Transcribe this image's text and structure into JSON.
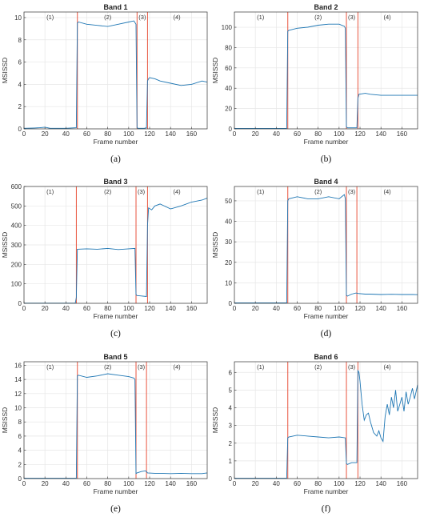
{
  "chart_data": [
    {
      "type": "line",
      "caption": "(a)",
      "title": "Band 1",
      "xlabel": "Frame number",
      "ylabel": "MSISSD",
      "xlim": [
        0,
        175
      ],
      "ylim": [
        0,
        10.5
      ],
      "xticks": [
        0,
        20,
        40,
        60,
        80,
        100,
        120,
        140,
        160
      ],
      "yticks": [
        0,
        2,
        4,
        6,
        8,
        10
      ],
      "grid": true,
      "vlines": [
        51,
        108,
        118
      ],
      "regions": [
        "(1)",
        "(2)",
        "(3)",
        "(4)"
      ],
      "region_x": [
        25,
        80,
        113,
        146
      ],
      "x": [
        0,
        10,
        15,
        20,
        25,
        30,
        40,
        50,
        51,
        52,
        60,
        70,
        80,
        90,
        100,
        105,
        107,
        108,
        109,
        112,
        115,
        117,
        118,
        119,
        120,
        125,
        130,
        140,
        150,
        160,
        170,
        175
      ],
      "y": [
        0.05,
        0.08,
        0.1,
        0.15,
        0.05,
        0.05,
        0.05,
        0.1,
        9.5,
        9.6,
        9.4,
        9.3,
        9.2,
        9.4,
        9.6,
        9.7,
        9.4,
        0.1,
        0.05,
        0.05,
        0.05,
        0.1,
        4.3,
        4.5,
        4.6,
        4.5,
        4.3,
        4.1,
        3.9,
        4.0,
        4.3,
        4.2
      ]
    },
    {
      "type": "line",
      "caption": "(b)",
      "title": "Band 2",
      "xlabel": "Frame number",
      "ylabel": "MSISSD",
      "xlim": [
        0,
        175
      ],
      "ylim": [
        0,
        115
      ],
      "xticks": [
        0,
        20,
        40,
        60,
        80,
        100,
        120,
        140,
        160
      ],
      "yticks": [
        0,
        20,
        40,
        60,
        80,
        100
      ],
      "grid": true,
      "vlines": [
        51,
        107,
        118
      ],
      "regions": [
        "(1)",
        "(2)",
        "(3)",
        "(4)"
      ],
      "region_x": [
        25,
        80,
        112,
        146
      ],
      "x": [
        0,
        20,
        40,
        50,
        51,
        52,
        60,
        70,
        80,
        90,
        100,
        105,
        106,
        107,
        108,
        112,
        117,
        118,
        119,
        125,
        130,
        140,
        150,
        160,
        170,
        175
      ],
      "y": [
        0.5,
        0.5,
        0.5,
        0.5,
        96,
        97,
        99,
        100,
        102,
        103,
        103,
        101,
        99,
        2,
        1,
        1,
        1,
        30,
        34,
        35,
        34,
        33,
        33,
        33,
        33,
        33
      ]
    },
    {
      "type": "line",
      "caption": "(c)",
      "title": "Band 3",
      "xlabel": "Frame number",
      "ylabel": "MSISSD",
      "xlim": [
        0,
        175
      ],
      "ylim": [
        0,
        600
      ],
      "xticks": [
        0,
        20,
        40,
        60,
        80,
        100,
        120,
        140,
        160
      ],
      "yticks": [
        0,
        100,
        200,
        300,
        400,
        500,
        600
      ],
      "grid": true,
      "vlines": [
        50,
        107,
        118
      ],
      "regions": [
        "(1)",
        "(2)",
        "(3)",
        "(4)"
      ],
      "region_x": [
        25,
        80,
        112,
        146
      ],
      "x": [
        0,
        20,
        40,
        49,
        50,
        51,
        60,
        70,
        80,
        90,
        100,
        106,
        107,
        108,
        112,
        117,
        118,
        119,
        122,
        125,
        130,
        140,
        150,
        160,
        170,
        175
      ],
      "y": [
        1,
        1,
        1,
        1,
        30,
        278,
        280,
        278,
        282,
        276,
        280,
        282,
        45,
        40,
        38,
        35,
        400,
        490,
        480,
        500,
        510,
        485,
        500,
        520,
        530,
        540
      ]
    },
    {
      "type": "line",
      "caption": "(d)",
      "title": "Band 4",
      "xlabel": "Frame number",
      "ylabel": "MSISSD",
      "xlim": [
        0,
        175
      ],
      "ylim": [
        0,
        57
      ],
      "xticks": [
        0,
        20,
        40,
        60,
        80,
        100,
        120,
        140,
        160
      ],
      "yticks": [
        0,
        10,
        20,
        30,
        40,
        50
      ],
      "grid": true,
      "vlines": [
        51,
        107,
        117
      ],
      "regions": [
        "(1)",
        "(2)",
        "(3)",
        "(4)"
      ],
      "region_x": [
        25,
        80,
        112,
        146
      ],
      "x": [
        0,
        20,
        40,
        50,
        51,
        52,
        60,
        70,
        80,
        90,
        100,
        105,
        106,
        107,
        108,
        112,
        116,
        117,
        118,
        125,
        130,
        140,
        150,
        160,
        170,
        175
      ],
      "y": [
        0.2,
        0.2,
        0.2,
        0.2,
        50,
        51,
        52,
        51,
        51,
        52,
        51,
        53,
        51,
        4,
        3.5,
        4.5,
        5,
        5,
        4.8,
        4.5,
        4.5,
        4.3,
        4.4,
        4.3,
        4.3,
        4.2
      ]
    },
    {
      "type": "line",
      "caption": "(e)",
      "title": "Band 5",
      "xlabel": "Frame number",
      "ylabel": "MSISSD",
      "xlim": [
        0,
        175
      ],
      "ylim": [
        0,
        16.5
      ],
      "xticks": [
        0,
        20,
        40,
        60,
        80,
        100,
        120,
        140,
        160
      ],
      "yticks": [
        0,
        2,
        4,
        6,
        8,
        10,
        12,
        14,
        16
      ],
      "grid": true,
      "vlines": [
        51,
        107,
        117
      ],
      "regions": [
        "(1)",
        "(2)",
        "(3)",
        "(4)"
      ],
      "region_x": [
        25,
        80,
        112,
        146
      ],
      "x": [
        0,
        20,
        40,
        50,
        51,
        52,
        60,
        70,
        80,
        90,
        100,
        105,
        106,
        107,
        108,
        112,
        116,
        117,
        118,
        125,
        130,
        140,
        150,
        160,
        170,
        175
      ],
      "y": [
        0.05,
        0.05,
        0.05,
        0.05,
        14.5,
        14.6,
        14.3,
        14.5,
        14.8,
        14.6,
        14.4,
        14.2,
        14.0,
        0.7,
        0.8,
        1.0,
        1.1,
        1.0,
        0.8,
        0.75,
        0.75,
        0.7,
        0.75,
        0.7,
        0.7,
        0.8
      ]
    },
    {
      "type": "line",
      "caption": "(f)",
      "title": "Band 6",
      "xlabel": "Frame number",
      "ylabel": "MSISSD",
      "xlim": [
        0,
        175
      ],
      "ylim": [
        0,
        6.6
      ],
      "xticks": [
        0,
        20,
        40,
        60,
        80,
        100,
        120,
        140,
        160
      ],
      "yticks": [
        0,
        1,
        2,
        3,
        4,
        5,
        6
      ],
      "grid": true,
      "vlines": [
        51,
        107,
        118
      ],
      "regions": [
        "(1)",
        "(2)",
        "(3)",
        "(4)"
      ],
      "region_x": [
        25,
        80,
        112,
        146
      ],
      "x": [
        0,
        20,
        40,
        50,
        51,
        52,
        60,
        70,
        80,
        90,
        100,
        106,
        107,
        108,
        112,
        117,
        118,
        119,
        120,
        122,
        124,
        126,
        128,
        130,
        133,
        136,
        138,
        140,
        142,
        144,
        146,
        148,
        150,
        152,
        154,
        156,
        158,
        160,
        162,
        164,
        166,
        168,
        170,
        172,
        175
      ],
      "y": [
        0.02,
        0.02,
        0.02,
        0.02,
        2.3,
        2.35,
        2.45,
        2.4,
        2.35,
        2.3,
        2.35,
        2.3,
        0.85,
        0.8,
        0.9,
        0.9,
        6.1,
        6.0,
        5.5,
        4.2,
        3.3,
        3.6,
        3.7,
        3.2,
        2.6,
        2.4,
        2.7,
        2.3,
        2.1,
        3.5,
        4.2,
        3.6,
        4.6,
        4.0,
        5.0,
        3.8,
        4.2,
        4.6,
        3.8,
        4.9,
        4.2,
        4.6,
        5.1,
        4.5,
        5.3
      ]
    }
  ]
}
